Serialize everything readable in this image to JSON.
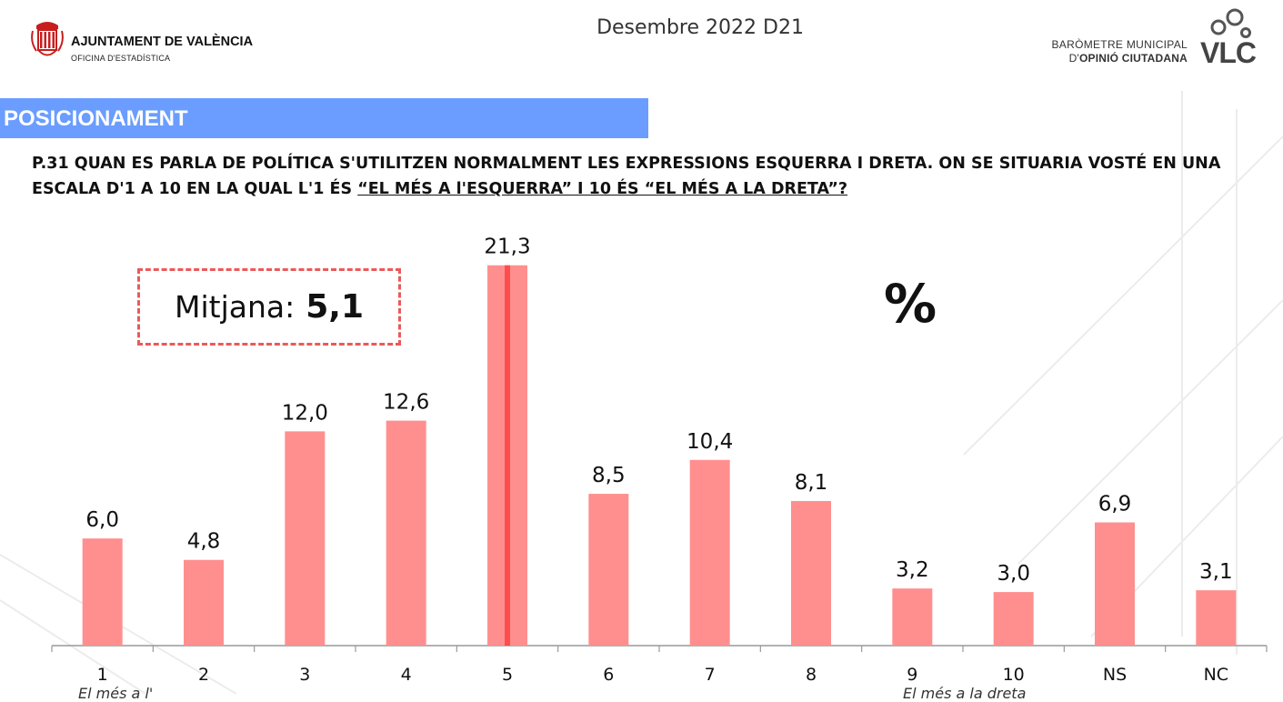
{
  "header": {
    "org_name": "AJUNTAMENT DE VALÈNCIA",
    "org_sub": "OFICINA D'ESTADÍSTICA",
    "date": "Desembre 2022 D21",
    "baro_line1": "BARÒMETRE MUNICIPAL",
    "baro_line2_pre": "D'",
    "baro_line2_bold": "OPINIÓ CIUTADANA",
    "baro_mark": "VLC"
  },
  "section": {
    "title": "POSICIONAMENT"
  },
  "question": {
    "text_plain": "P.31 QUAN ES PARLA DE POLÍTICA S'UTILITZEN NORMALMENT LES EXPRESSIONS ESQUERRA I DRETA. ON SE SITUARIA VOSTÉ EN UNA ESCALA D'1 A 10 EN LA QUAL L'1 ÉS ",
    "text_underlined": "“EL MÉS A l'ESQUERRA” I 10 ÉS “EL MÉS A LA DRETA”?"
  },
  "summary": {
    "mean_label": "Mitjana:",
    "mean_value": "5,1",
    "unit": "%"
  },
  "notes": {
    "left": "El més a l'",
    "right": "El més a la dreta"
  },
  "colors": {
    "bar": "#ff8f8f",
    "bar_highlight_line": "#ff4d4d",
    "section_bar": "#6a9dff",
    "mean_border": "#ea5a5a",
    "axis": "#999999"
  },
  "chart_data": {
    "type": "bar",
    "categories": [
      "1",
      "2",
      "3",
      "4",
      "5",
      "6",
      "7",
      "8",
      "9",
      "10",
      "NS",
      "NC"
    ],
    "values": [
      6.0,
      4.8,
      12.0,
      12.6,
      21.3,
      8.5,
      10.4,
      8.1,
      3.2,
      3.0,
      6.9,
      3.1
    ],
    "value_labels": [
      "6,0",
      "4,8",
      "12,0",
      "12,6",
      "21,3",
      "8,5",
      "10,4",
      "8,1",
      "3,2",
      "3,0",
      "6,9",
      "3,1"
    ],
    "highlight_category": "5",
    "title": "",
    "xlabel": "",
    "ylabel": "",
    "ylim": [
      0,
      22
    ],
    "grid": false,
    "legend": "none"
  }
}
